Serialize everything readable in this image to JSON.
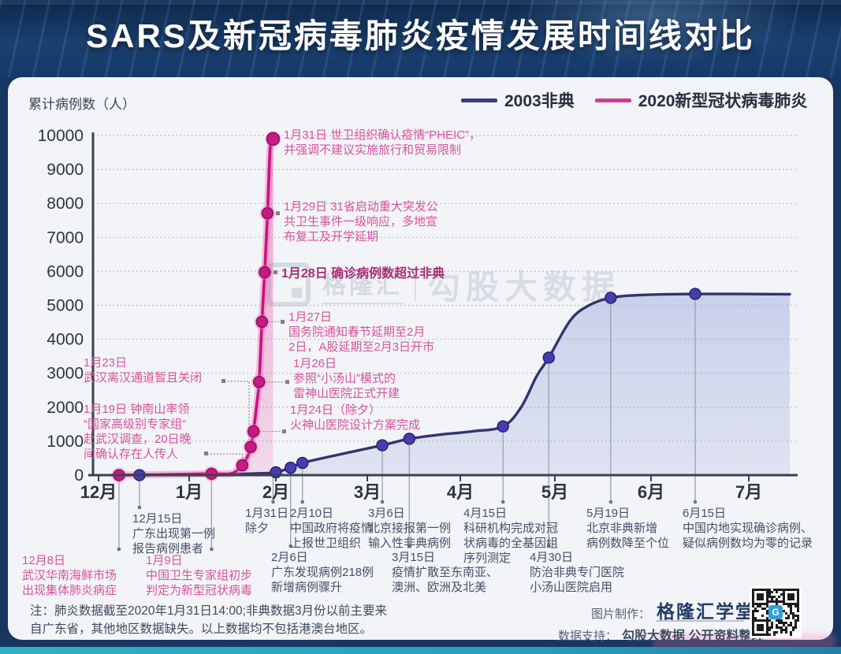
{
  "header": {
    "title": "SARS及新冠病毒肺炎疫情发展时间线对比"
  },
  "legend": [
    {
      "label": "2003非典",
      "color": "#3c3c7e"
    },
    {
      "label": "2020新型冠状病毒肺炎",
      "color": "#d23a97"
    }
  ],
  "chart_data": {
    "type": "line",
    "title": "SARS及新冠病毒肺炎疫情发展时间线对比",
    "ylabel": "累计病例数（人）",
    "xlabel": "",
    "ylim": [
      0,
      10000
    ],
    "ytick_interval": 1000,
    "x_tick_labels": [
      "12月",
      "1月",
      "2月",
      "3月",
      "4月",
      "5月",
      "6月",
      "7月"
    ],
    "grid": "dotted-horizontal",
    "legend_position": "top-right",
    "series": [
      {
        "name": "2003非典",
        "color": "#34346e",
        "fill": "#8e9fd9",
        "points": [
          {
            "date": "12月15日",
            "m": 12,
            "d": 15,
            "v": 1,
            "dot": true
          },
          {
            "m": 1,
            "d": 15,
            "v": 30
          },
          {
            "m": 1,
            "d": 28,
            "v": 55
          },
          {
            "date": "2月1日",
            "m": 2,
            "d": 1,
            "v": 85,
            "dot": true
          },
          {
            "date": "2月6日",
            "m": 2,
            "d": 6,
            "v": 218,
            "dot": true
          },
          {
            "date": "2月10日",
            "m": 2,
            "d": 10,
            "v": 360,
            "dot": true
          },
          {
            "m": 2,
            "d": 20,
            "v": 560
          },
          {
            "date": "3月6日",
            "m": 3,
            "d": 6,
            "v": 880,
            "dot": true
          },
          {
            "date": "3月15日",
            "m": 3,
            "d": 15,
            "v": 1070,
            "dot": true
          },
          {
            "m": 3,
            "d": 25,
            "v": 1190
          },
          {
            "m": 4,
            "d": 5,
            "v": 1290
          },
          {
            "date": "4月15日",
            "m": 4,
            "d": 15,
            "v": 1435,
            "dot": true
          },
          {
            "m": 4,
            "d": 21,
            "v": 2010
          },
          {
            "m": 4,
            "d": 26,
            "v": 2915
          },
          {
            "date": "4月30日",
            "m": 4,
            "d": 30,
            "v": 3460,
            "dot": true
          },
          {
            "m": 5,
            "d": 6,
            "v": 4560
          },
          {
            "m": 5,
            "d": 12,
            "v": 5000
          },
          {
            "date": "5月19日",
            "m": 5,
            "d": 19,
            "v": 5220,
            "dot": true
          },
          {
            "m": 5,
            "d": 28,
            "v": 5300
          },
          {
            "date": "6月15日",
            "m": 6,
            "d": 15,
            "v": 5335,
            "dot": true
          },
          {
            "m": 7,
            "d": 14,
            "v": 5327
          }
        ]
      },
      {
        "name": "2020新型冠状病毒肺炎",
        "color": "#c4157f",
        "fill": "#e7379e",
        "points": [
          {
            "date": "12月8日",
            "m": 12,
            "d": 8,
            "v": 1,
            "dot": true
          },
          {
            "m": 12,
            "d": 31,
            "v": 27
          },
          {
            "date": "1月9日",
            "m": 1,
            "d": 9,
            "v": 41,
            "dot": true
          },
          {
            "m": 1,
            "d": 16,
            "v": 45
          },
          {
            "m": 1,
            "d": 19,
            "v": 198
          },
          {
            "date": "1月20日",
            "m": 1,
            "d": 20,
            "v": 291,
            "dot": true
          },
          {
            "m": 1,
            "d": 22,
            "v": 571
          },
          {
            "date": "1月23日",
            "m": 1,
            "d": 23,
            "v": 830,
            "dot": true
          },
          {
            "date": "1月24日",
            "m": 1,
            "d": 24,
            "v": 1287,
            "dot": true
          },
          {
            "m": 1,
            "d": 25,
            "v": 1975
          },
          {
            "date": "1月26日",
            "m": 1,
            "d": 26,
            "v": 2744,
            "dot": true
          },
          {
            "date": "1月27日",
            "m": 1,
            "d": 27,
            "v": 4515,
            "dot": true
          },
          {
            "date": "1月28日",
            "m": 1,
            "d": 28,
            "v": 5974,
            "dot": true
          },
          {
            "date": "1月29日",
            "m": 1,
            "d": 29,
            "v": 7711,
            "dot": true
          },
          {
            "m": 1,
            "d": 30,
            "v": 9692
          },
          {
            "date": "1月31日",
            "m": 1,
            "d": 31,
            "v": 9900,
            "dot": true
          }
        ]
      }
    ]
  },
  "annotations": {
    "right": [
      {
        "date": "1月31日",
        "text": "1月31日 世卫组织确认疫情“PHEIC”，\n并强调不建议实施旅行和贸易限制"
      },
      {
        "date": "1月29日",
        "text": "1月29日 31省启动重大突发公\n共卫生事件一级响应，多地宣\n布复工及开学延期"
      },
      {
        "date": "1月28日",
        "text": "1月28日 确诊病例数超过非典"
      },
      {
        "date": "1月27日",
        "text": "1月27日\n国务院通知春节延期至2月\n2日，A股延期至2月3日开市"
      },
      {
        "date": "1月26日",
        "text": "1月26日\n参照“小汤山”模式的\n雷神山医院正式开建"
      },
      {
        "date": "1月24日",
        "text": "1月24日（除夕）\n火神山医院设计方案完成"
      }
    ],
    "left": [
      {
        "date": "1月23日",
        "text": "1月23日\n武汉离汉通道暂且关闭"
      },
      {
        "date": "1月19日",
        "text": "1月19日 钟南山率领\n“国家高级别专家组”\n赴武汉调查，20日晚\n间确认存在人传人"
      }
    ],
    "below_row1": [
      {
        "date": "12月15日",
        "text": "12月15日\n广东出现第一例\n报告病例患者"
      },
      {
        "date": "1月31日",
        "text": "1月31日\n除夕"
      },
      {
        "date": "2月10日",
        "text": "2月10日\n中国政府将疫情\n上报世卫组织"
      },
      {
        "date": "3月6日",
        "text": "3月6日\n北京接报第一例\n输入性非典病例"
      },
      {
        "date": "4月15日",
        "text": "4月15日\n科研机构完成对冠\n状病毒的全基因组\n序列测定"
      },
      {
        "date": "5月19日",
        "text": "5月19日\n北京非典新增\n病例数降至个位"
      },
      {
        "date": "6月15日",
        "text": "6月15日\n中国内地实现确诊病例、\n疑似病例数均为零的记录"
      }
    ],
    "below_row2": [
      {
        "date": "12月8日",
        "text": "12月8日\n武汉华南海鲜市场\n出现集体肺炎病症"
      },
      {
        "date": "1月9日",
        "text": "1月9日\n中国卫生专家组初步\n判定为新型冠状病毒"
      },
      {
        "date": "2月6日",
        "text": "2月6日\n广东发现病例218例\n新增病例骤升"
      },
      {
        "date": "3月15日",
        "text": "3月15日\n疫情扩散至东南亚、\n澳洲、欧洲及北美"
      },
      {
        "date": "4月30日",
        "text": "4月30日\n防治非典专门医院\n小汤山医院启用"
      }
    ]
  },
  "footnote": "注：肺炎数据截至2020年1月31日14:00;非典数据3月份以前主要来\n自广东省，其他地区数据缺失。以上数据均不包括港澳台地区。",
  "credits": {
    "image_label": "图片制作：",
    "image_value": "格隆汇学堂",
    "data_label": "数据支持：",
    "data_value": "勾股大数据 公开资料整理"
  },
  "watermark": {
    "brand": "格隆汇",
    "product": "勾股大数据"
  }
}
